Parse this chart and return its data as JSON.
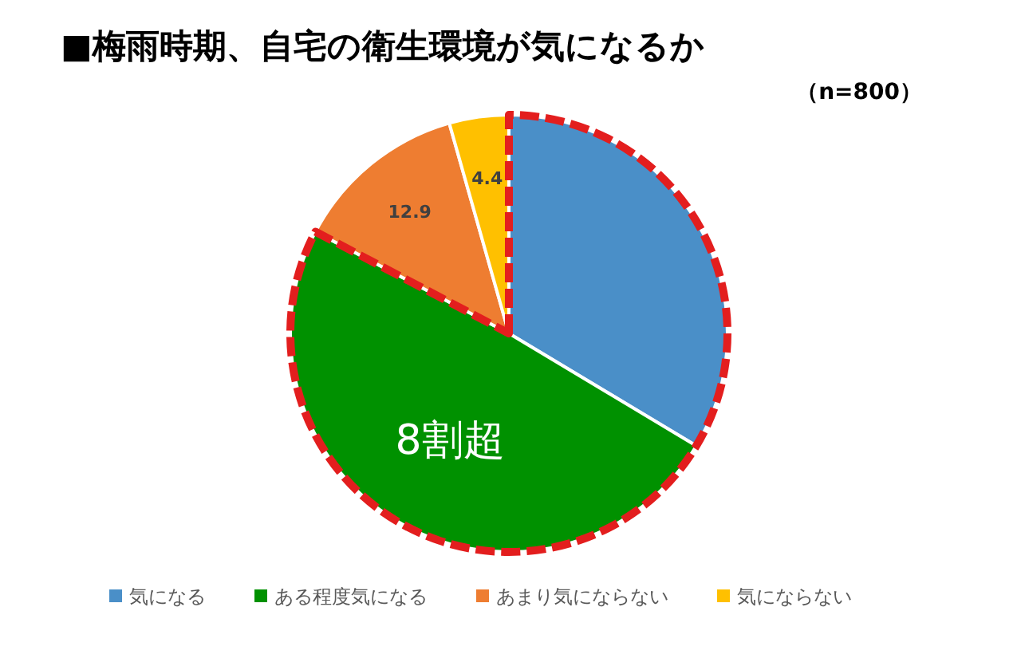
{
  "chart_data": {
    "type": "pie",
    "title": "■梅雨時期、自宅の衛生環境が気になるか",
    "subtitle": "（n=800）",
    "categories": [
      "気になる",
      "ある程度気になる",
      "あまり気にならない",
      "気にならない"
    ],
    "values": [
      33.6,
      49.1,
      12.9,
      4.4
    ],
    "colors": [
      "#4a8fc8",
      "#009100",
      "#ee7d31",
      "#ffc000"
    ],
    "value_labels": [
      null,
      null,
      "12.9",
      "4.4"
    ],
    "annotations": [
      "8割超"
    ],
    "legend": "bottom"
  }
}
